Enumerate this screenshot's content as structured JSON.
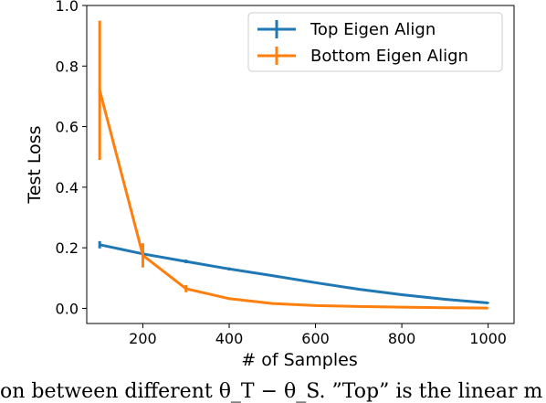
{
  "chart_data": {
    "type": "line",
    "xlabel": "# of Samples",
    "ylabel": "Test Loss",
    "xlim": [
      70,
      1060
    ],
    "ylim": [
      -0.05,
      1.0
    ],
    "xticks": [
      200,
      400,
      600,
      800,
      1000
    ],
    "yticks": [
      0.0,
      0.2,
      0.4,
      0.6,
      0.8,
      1.0
    ],
    "xtick_labels": [
      "200",
      "400",
      "600",
      "800",
      "1000"
    ],
    "ytick_labels": [
      "0.0",
      "0.2",
      "0.4",
      "0.6",
      "0.8",
      "1.0"
    ],
    "grid": false,
    "legend_position": "top-right",
    "series": [
      {
        "name": "Top Eigen Align",
        "color": "#1f77b4",
        "x": [
          100,
          200,
          300,
          400,
          500,
          600,
          700,
          800,
          900,
          1000
        ],
        "y": [
          0.21,
          0.18,
          0.155,
          0.13,
          0.108,
          0.085,
          0.063,
          0.045,
          0.03,
          0.018
        ],
        "err": [
          0.012,
          0.006,
          0.006,
          0.005,
          0.003,
          0.003,
          0.003,
          0.002,
          0.002,
          0.002
        ]
      },
      {
        "name": "Bottom Eigen Align",
        "color": "#ff7f0e",
        "x": [
          100,
          200,
          300,
          400,
          500,
          600,
          700,
          800,
          900,
          1000
        ],
        "y": [
          0.72,
          0.175,
          0.065,
          0.032,
          0.016,
          0.009,
          0.006,
          0.004,
          0.002,
          0.001
        ],
        "err": [
          0.23,
          0.04,
          0.012,
          0.004,
          0.002,
          0.001,
          0.001,
          0.001,
          0.001,
          0.001
        ]
      }
    ]
  },
  "caption": {
    "text": "on between different θ_T − θ_S. ”Top” is the linear m"
  }
}
